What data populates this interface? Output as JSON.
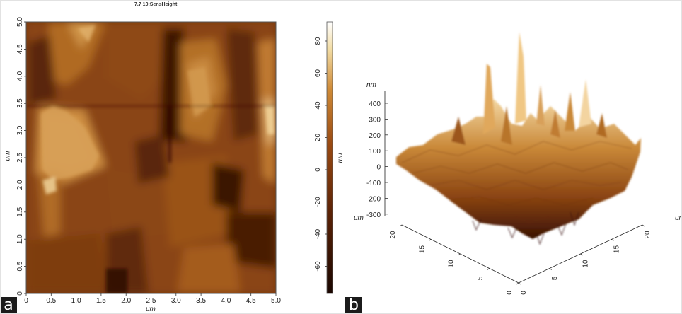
{
  "figure": {
    "panel_a": {
      "letter": "a",
      "image_title": "7.7 10:SensHeight",
      "x_ticks": [
        "0",
        "0.5",
        "1.0",
        "1.5",
        "2.0",
        "2.5",
        "3.0",
        "3.5",
        "4.0",
        "4.5",
        "5.0"
      ],
      "y_ticks": [
        "0",
        "0.5",
        "1.0",
        "1.5",
        "2.0",
        "2.5",
        "3.0",
        "3.5",
        "4.0",
        "4.5",
        "5.0"
      ],
      "x_unit": "um",
      "y_unit": "um",
      "colorbar_ticks": [
        "80",
        "60",
        "40",
        "20",
        "0",
        "-20",
        "-40",
        "-60"
      ],
      "colorbar_unit": "nm"
    },
    "panel_b": {
      "letter": "b",
      "z_unit": "nm",
      "z_ticks": [
        "400",
        "300",
        "200",
        "100",
        "0",
        "-100",
        "-200",
        "-300"
      ],
      "left_axis_unit": "um",
      "right_axis_unit": "um",
      "left_axis_ticks": [
        "20",
        "15",
        "10",
        "5",
        "0"
      ],
      "right_axis_ticks": [
        "0",
        "5",
        "10",
        "15",
        "20"
      ]
    }
  },
  "chart_data": [
    {
      "type": "heatmap",
      "title": "7.7 10:SensHeight",
      "xlabel": "um",
      "ylabel": "um",
      "xlim": [
        0,
        5.0
      ],
      "ylim": [
        0,
        5.0
      ],
      "colorbar_label": "nm",
      "colorbar_range": [
        -75,
        90
      ],
      "colormap": [
        "#1a0600",
        "#5c2306",
        "#9a4a12",
        "#cf8a36",
        "#f2dca4",
        "#ffffff"
      ]
    },
    {
      "type": "area",
      "title": "",
      "zlabel": "nm",
      "zlim": [
        -300,
        400
      ],
      "xlabel": "um",
      "ylabel": "um",
      "xlim": [
        0,
        20
      ],
      "ylim": [
        0,
        20
      ]
    }
  ]
}
